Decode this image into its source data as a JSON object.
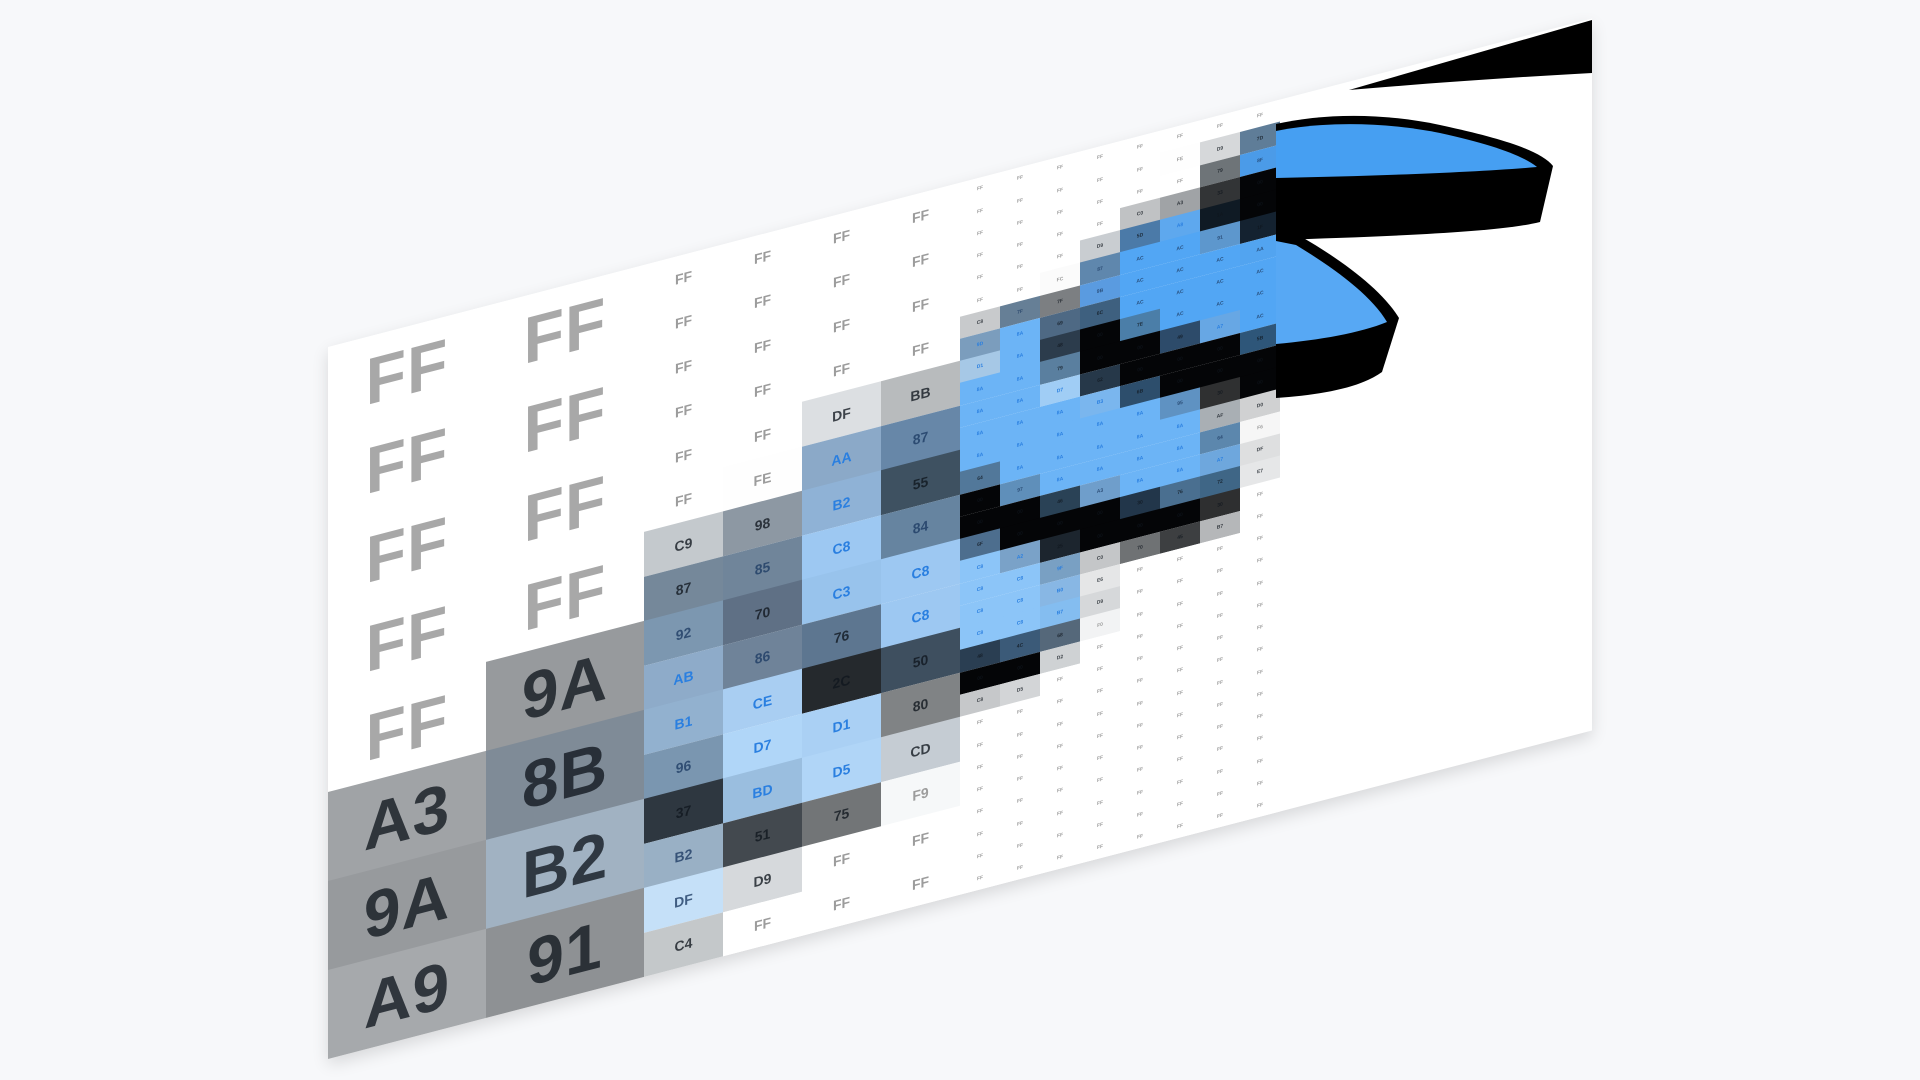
{
  "colors": {
    "background": "#f7f8fa",
    "panel": "#ffffff",
    "shape_blue": "#469ff2",
    "shape_blue_light": "#57a8f4",
    "outline": "#000000"
  },
  "grid": {
    "large_columns": [
      [
        [
          "FF",
          "#ffffff"
        ],
        [
          "FF",
          "#ffffff"
        ],
        [
          "FF",
          "#ffffff"
        ],
        [
          "FF",
          "#ffffff"
        ],
        [
          "FF",
          "#ffffff"
        ],
        [
          "A3",
          "#a0a3a6"
        ],
        [
          "9A",
          "#979a9d"
        ],
        [
          "A9",
          "#a6a9ac"
        ]
      ],
      [
        [
          "FF",
          "#ffffff"
        ],
        [
          "FF",
          "#ffffff"
        ],
        [
          "FF",
          "#ffffff"
        ],
        [
          "FF",
          "#ffffff"
        ],
        [
          "9A",
          "#979a9d"
        ],
        [
          "8B",
          "#7f8b97"
        ],
        [
          "B2",
          "#a1b2c2"
        ],
        [
          "91",
          "#8e9194"
        ]
      ]
    ],
    "medium_columns": [
      [
        [
          "FF",
          "#ffffff"
        ],
        [
          "FF",
          "#ffffff"
        ],
        [
          "FF",
          "#ffffff"
        ],
        [
          "FF",
          "#ffffff"
        ],
        [
          "FF",
          "#ffffff"
        ],
        [
          "FF",
          "#ffffff"
        ],
        [
          "C9",
          "#c4c9cd"
        ],
        [
          "87",
          "#75889a"
        ],
        [
          "92",
          "#7c97b0"
        ],
        [
          "AB",
          "#8eabc9"
        ],
        [
          "B1",
          "#92b1cf"
        ],
        [
          "96",
          "#7a96b0"
        ],
        [
          "37",
          "#2e3740"
        ],
        [
          "B2",
          "#99b0c5"
        ],
        [
          "DF",
          "#c5e0f8"
        ],
        [
          "C4",
          "#c4c8ca"
        ]
      ],
      [
        [
          "FF",
          "#ffffff"
        ],
        [
          "FF",
          "#ffffff"
        ],
        [
          "FF",
          "#ffffff"
        ],
        [
          "FF",
          "#ffffff"
        ],
        [
          "FF",
          "#ffffff"
        ],
        [
          "FE",
          "#fefefe"
        ],
        [
          "98",
          "#8d98a3"
        ],
        [
          "85",
          "#70859a"
        ],
        [
          "70",
          "#5f7085"
        ],
        [
          "86",
          "#6f8399"
        ],
        [
          "CE",
          "#a9cef2"
        ],
        [
          "D7",
          "#b0d6f8"
        ],
        [
          "BD",
          "#9abedf"
        ],
        [
          "51",
          "#43494f"
        ],
        [
          "D9",
          "#d6d9dc"
        ],
        [
          "FF",
          "#ffffff"
        ]
      ],
      [
        [
          "FF",
          "#ffffff"
        ],
        [
          "FF",
          "#ffffff"
        ],
        [
          "FF",
          "#ffffff"
        ],
        [
          "FF",
          "#ffffff"
        ],
        [
          "DF",
          "#dcdfe2"
        ],
        [
          "AA",
          "#8ba9c8"
        ],
        [
          "B2",
          "#8fb2d6"
        ],
        [
          "C8",
          "#9dc8f2"
        ],
        [
          "C3",
          "#98c3ec"
        ],
        [
          "76",
          "#5d7690"
        ],
        [
          "2C",
          "#25292d"
        ],
        [
          "D1",
          "#aad0f4"
        ],
        [
          "D5",
          "#b0d5f7"
        ],
        [
          "75",
          "#727577"
        ],
        [
          "FF",
          "#ffffff"
        ],
        [
          "FF",
          "#ffffff"
        ]
      ],
      [
        [
          "FF",
          "#ffffff"
        ],
        [
          "FF",
          "#ffffff"
        ],
        [
          "FF",
          "#ffffff"
        ],
        [
          "FF",
          "#ffffff"
        ],
        [
          "BB",
          "#b8bbbd"
        ],
        [
          "87",
          "#6787a8"
        ],
        [
          "55",
          "#3e5161"
        ],
        [
          "84",
          "#6684a0"
        ],
        [
          "C8",
          "#9dc8f2"
        ],
        [
          "C8",
          "#9dc8f2"
        ],
        [
          "50",
          "#3e4f5f"
        ],
        [
          "80",
          "#808385"
        ],
        [
          "CD",
          "#c5ccd3"
        ],
        [
          "F9",
          "#f6f8f9"
        ],
        [
          "FF",
          "#ffffff"
        ],
        [
          "FF",
          "#ffffff"
        ]
      ]
    ],
    "small_columns": [
      [
        [
          "FF",
          "#ffffff"
        ],
        [
          "FF",
          "#ffffff"
        ],
        [
          "FF",
          "#ffffff"
        ],
        [
          "FF",
          "#ffffff"
        ],
        [
          "FF",
          "#ffffff"
        ],
        [
          "FF",
          "#ffffff"
        ],
        [
          "C8",
          "#c8cacc"
        ],
        [
          "9D",
          "#7b9dbd"
        ],
        [
          "D1",
          "#a6c8e6"
        ],
        [
          "8A",
          "#6cb4f6"
        ],
        [
          "8A",
          "#6cb4f6"
        ],
        [
          "8A",
          "#6cb4f6"
        ],
        [
          "8A",
          "#6cb4f6"
        ],
        [
          "64",
          "#52789a"
        ],
        [
          "00",
          "#040507"
        ],
        [
          "00",
          "#040507"
        ],
        [
          "6F",
          "#4d6e8e"
        ],
        [
          "C8",
          "#8cc5f8"
        ],
        [
          "C8",
          "#8cc5f8"
        ],
        [
          "C8",
          "#8cc5f8"
        ],
        [
          "C8",
          "#8cc5f8"
        ],
        [
          "48",
          "#2a3e52"
        ],
        [
          "00",
          "#040507"
        ],
        [
          "C8",
          "#c6c8ca"
        ],
        [
          "FF",
          "#ffffff"
        ],
        [
          "FF",
          "#ffffff"
        ],
        [
          "FF",
          "#ffffff"
        ],
        [
          "FF",
          "#ffffff"
        ],
        [
          "FF",
          "#ffffff"
        ],
        [
          "FF",
          "#ffffff"
        ],
        [
          "FF",
          "#ffffff"
        ],
        [
          "FF",
          "#ffffff"
        ]
      ],
      [
        [
          "FF",
          "#ffffff"
        ],
        [
          "FF",
          "#ffffff"
        ],
        [
          "FF",
          "#ffffff"
        ],
        [
          "FF",
          "#ffffff"
        ],
        [
          "FF",
          "#ffffff"
        ],
        [
          "FF",
          "#ffffff"
        ],
        [
          "7F",
          "#667f96"
        ],
        [
          "8A",
          "#6cb4f6"
        ],
        [
          "8A",
          "#6cb4f6"
        ],
        [
          "8A",
          "#6cb4f6"
        ],
        [
          "8A",
          "#6cb4f6"
        ],
        [
          "8A",
          "#6cb4f6"
        ],
        [
          "8A",
          "#6cb4f6"
        ],
        [
          "8A",
          "#6cb4f6"
        ],
        [
          "97",
          "#5f8fba"
        ],
        [
          "00",
          "#040507"
        ],
        [
          "00",
          "#040507"
        ],
        [
          "A2",
          "#7aa2c8"
        ],
        [
          "C8",
          "#8cc5f8"
        ],
        [
          "C8",
          "#8cc5f8"
        ],
        [
          "C8",
          "#8cc5f8"
        ],
        [
          "4C",
          "#3b5a78"
        ],
        [
          "00",
          "#040507"
        ],
        [
          "D5",
          "#d3d5d7"
        ],
        [
          "FF",
          "#ffffff"
        ],
        [
          "FF",
          "#ffffff"
        ],
        [
          "FF",
          "#ffffff"
        ],
        [
          "FF",
          "#ffffff"
        ],
        [
          "FF",
          "#ffffff"
        ],
        [
          "FF",
          "#ffffff"
        ],
        [
          "FF",
          "#ffffff"
        ],
        [
          "FF",
          "#ffffff"
        ]
      ],
      [
        [
          "FF",
          "#ffffff"
        ],
        [
          "FF",
          "#ffffff"
        ],
        [
          "FF",
          "#ffffff"
        ],
        [
          "FF",
          "#ffffff"
        ],
        [
          "FF",
          "#ffffff"
        ],
        [
          "FC",
          "#fbfbfb"
        ],
        [
          "7F",
          "#7c7f82"
        ],
        [
          "69",
          "#4e6984"
        ],
        [
          "48",
          "#2c3c4c"
        ],
        [
          "79",
          "#5a7f9f"
        ],
        [
          "D7",
          "#a0cdf5"
        ],
        [
          "8A",
          "#6cb4f6"
        ],
        [
          "8A",
          "#6cb4f6"
        ],
        [
          "8A",
          "#6cb4f6"
        ],
        [
          "8A",
          "#6cb4f6"
        ],
        [
          "46",
          "#2a4256"
        ],
        [
          "00",
          "#040507"
        ],
        [
          "25",
          "#1c252e"
        ],
        [
          "9F",
          "#79a0c3"
        ],
        [
          "B0",
          "#88b7e4"
        ],
        [
          "B7",
          "#84bdf0"
        ],
        [
          "68",
          "#55687a"
        ],
        [
          "D2",
          "#cfd2d4"
        ],
        [
          "FF",
          "#ffffff"
        ],
        [
          "FF",
          "#ffffff"
        ],
        [
          "FF",
          "#ffffff"
        ],
        [
          "FF",
          "#ffffff"
        ],
        [
          "FF",
          "#ffffff"
        ],
        [
          "FF",
          "#ffffff"
        ],
        [
          "FF",
          "#ffffff"
        ],
        [
          "FF",
          "#ffffff"
        ],
        [
          "FF",
          "#ffffff"
        ]
      ],
      [
        [
          "FF",
          "#ffffff"
        ],
        [
          "FF",
          "#ffffff"
        ],
        [
          "FF",
          "#ffffff"
        ],
        [
          "FF",
          "#ffffff"
        ],
        [
          "D9",
          "#c9cdd1"
        ],
        [
          "87",
          "#5f87ad"
        ],
        [
          "9B",
          "#5a9be0"
        ],
        [
          "6C",
          "#3e607f"
        ],
        [
          "00",
          "#040507"
        ],
        [
          "00",
          "#040507"
        ],
        [
          "62",
          "#263849"
        ],
        [
          "B3",
          "#7ab6ee"
        ],
        [
          "8A",
          "#6cb4f6"
        ],
        [
          "8A",
          "#6cb4f6"
        ],
        [
          "8A",
          "#6cb4f6"
        ],
        [
          "A3",
          "#6f9ecb"
        ],
        [
          "00",
          "#040507"
        ],
        [
          "00",
          "#040507"
        ],
        [
          "C0",
          "#c4c6c8"
        ],
        [
          "E6",
          "#e5e6e7"
        ],
        [
          "D9",
          "#d6d8da"
        ],
        [
          "F0",
          "#f2f3f4"
        ],
        [
          "FF",
          "#ffffff"
        ],
        [
          "FF",
          "#ffffff"
        ],
        [
          "FF",
          "#ffffff"
        ],
        [
          "FF",
          "#ffffff"
        ],
        [
          "FF",
          "#ffffff"
        ],
        [
          "FF",
          "#ffffff"
        ],
        [
          "FF",
          "#ffffff"
        ],
        [
          "FF",
          "#ffffff"
        ],
        [
          "FF",
          "#ffffff"
        ],
        [
          "FF",
          "#ffffff"
        ]
      ],
      [
        [
          "FF",
          "#ffffff"
        ],
        [
          "FF",
          "#ffffff"
        ],
        [
          "FF",
          "#ffffff"
        ],
        [
          "C0",
          "#c0c2c4"
        ],
        [
          "5D",
          "#4b7aa8"
        ],
        [
          "AC",
          "#52a6f4"
        ],
        [
          "AC",
          "#52a6f4"
        ],
        [
          "AC",
          "#52a6f4"
        ],
        [
          "7E",
          "#4b7ea8"
        ],
        [
          "00",
          "#040507"
        ],
        [
          "00",
          "#040507"
        ],
        [
          "6B",
          "#2d4e6c"
        ],
        [
          "8A",
          "#6cb4f6"
        ],
        [
          "8A",
          "#6cb4f6"
        ],
        [
          "8A",
          "#6cb4f6"
        ],
        [
          "8A",
          "#6cb4f6"
        ],
        [
          "30",
          "#22364a"
        ],
        [
          "00",
          "#040507"
        ],
        [
          "70",
          "#6f7274"
        ],
        [
          "FF",
          "#ffffff"
        ],
        [
          "FF",
          "#ffffff"
        ],
        [
          "FF",
          "#ffffff"
        ],
        [
          "FF",
          "#ffffff"
        ],
        [
          "FF",
          "#ffffff"
        ],
        [
          "FF",
          "#ffffff"
        ],
        [
          "FF",
          "#ffffff"
        ],
        [
          "FF",
          "#ffffff"
        ],
        [
          "FF",
          "#ffffff"
        ],
        [
          "FF",
          "#ffffff"
        ],
        [
          "FF",
          "#ffffff"
        ],
        [
          "FF",
          "#ffffff"
        ],
        [
          "FF",
          "#ffffff"
        ]
      ],
      [
        [
          "FF",
          "#ffffff"
        ],
        [
          "FE",
          "#fefefe"
        ],
        [
          "FF",
          "#ffffff"
        ],
        [
          "A3",
          "#a0a3a6"
        ],
        [
          "A8",
          "#5ea8ee"
        ],
        [
          "AC",
          "#52a6f4"
        ],
        [
          "AC",
          "#52a6f4"
        ],
        [
          "AC",
          "#52a6f4"
        ],
        [
          "AC",
          "#52a6f4"
        ],
        [
          "49",
          "#2d4b6a"
        ],
        [
          "00",
          "#040507"
        ],
        [
          "00",
          "#040507"
        ],
        [
          "95",
          "#5f92c2"
        ],
        [
          "8A",
          "#6cb4f6"
        ],
        [
          "8A",
          "#6cb4f6"
        ],
        [
          "8A",
          "#6cb4f6"
        ],
        [
          "76",
          "#4a6f90"
        ],
        [
          "00",
          "#040507"
        ],
        [
          "45",
          "#3d3f41"
        ],
        [
          "FF",
          "#ffffff"
        ],
        [
          "FF",
          "#ffffff"
        ],
        [
          "FF",
          "#ffffff"
        ],
        [
          "FF",
          "#ffffff"
        ],
        [
          "FF",
          "#ffffff"
        ],
        [
          "FF",
          "#ffffff"
        ],
        [
          "FF",
          "#ffffff"
        ],
        [
          "FF",
          "#ffffff"
        ],
        [
          "FF",
          "#ffffff"
        ],
        [
          "FF",
          "#ffffff"
        ],
        [
          "FF",
          "#ffffff"
        ],
        [
          "FF",
          "#ffffff"
        ],
        [
          "FF",
          "#ffffff"
        ]
      ],
      [
        [
          "FF",
          "#ffffff"
        ],
        [
          "D9",
          "#d6d8da"
        ],
        [
          "79",
          "#6e7478"
        ],
        [
          "33",
          "#323436"
        ],
        [
          "1A",
          "#0f1a24"
        ],
        [
          "91",
          "#5d97cd"
        ],
        [
          "AC",
          "#52a6f4"
        ],
        [
          "AC",
          "#52a6f4"
        ],
        [
          "AC",
          "#52a6f4"
        ],
        [
          "A7",
          "#67a7e4"
        ],
        [
          "00",
          "#040507"
        ],
        [
          "00",
          "#040507"
        ],
        [
          "30",
          "#2f3031"
        ],
        [
          "AF",
          "#a9afb4"
        ],
        [
          "64",
          "#5c87ad"
        ],
        [
          "A7",
          "#6ea7dd"
        ],
        [
          "72",
          "#3f6686"
        ],
        [
          "30",
          "#2e2f30"
        ],
        [
          "B7",
          "#b5b7b9"
        ],
        [
          "FF",
          "#ffffff"
        ],
        [
          "FF",
          "#ffffff"
        ],
        [
          "FF",
          "#ffffff"
        ],
        [
          "FF",
          "#ffffff"
        ],
        [
          "FF",
          "#ffffff"
        ],
        [
          "FF",
          "#ffffff"
        ],
        [
          "FF",
          "#ffffff"
        ],
        [
          "FF",
          "#ffffff"
        ],
        [
          "FF",
          "#ffffff"
        ],
        [
          "FF",
          "#ffffff"
        ],
        [
          "FF",
          "#ffffff"
        ],
        [
          "FF",
          "#ffffff"
        ],
        [
          "FF",
          "#ffffff"
        ]
      ],
      [
        [
          "FF",
          "#ffffff"
        ],
        [
          "7D",
          "#5f7d98"
        ],
        [
          "8F",
          "#4b9be8"
        ],
        [
          "00",
          "#040507"
        ],
        [
          "00",
          "#040507"
        ],
        [
          "1F",
          "#142230"
        ],
        [
          "AA",
          "#52a4f0"
        ],
        [
          "AC",
          "#52a6f4"
        ],
        [
          "AC",
          "#52a6f4"
        ],
        [
          "AC",
          "#52a6f4"
        ],
        [
          "5B",
          "#2e5679"
        ],
        [
          "00",
          "#040507"
        ],
        [
          "00",
          "#040507"
        ],
        [
          "D0",
          "#d0d1d2"
        ],
        [
          "F6",
          "#f6f6f6"
        ],
        [
          "DF",
          "#dedfe0"
        ],
        [
          "E7",
          "#e6e7e8"
        ],
        [
          "FF",
          "#ffffff"
        ],
        [
          "FF",
          "#ffffff"
        ],
        [
          "FF",
          "#ffffff"
        ],
        [
          "FF",
          "#ffffff"
        ],
        [
          "FF",
          "#ffffff"
        ],
        [
          "FF",
          "#ffffff"
        ],
        [
          "FF",
          "#ffffff"
        ],
        [
          "FF",
          "#ffffff"
        ],
        [
          "FF",
          "#ffffff"
        ],
        [
          "FF",
          "#ffffff"
        ],
        [
          "FF",
          "#ffffff"
        ],
        [
          "FF",
          "#ffffff"
        ],
        [
          "FF",
          "#ffffff"
        ],
        [
          "FF",
          "#ffffff"
        ],
        [
          "FF",
          "#ffffff"
        ]
      ]
    ]
  }
}
